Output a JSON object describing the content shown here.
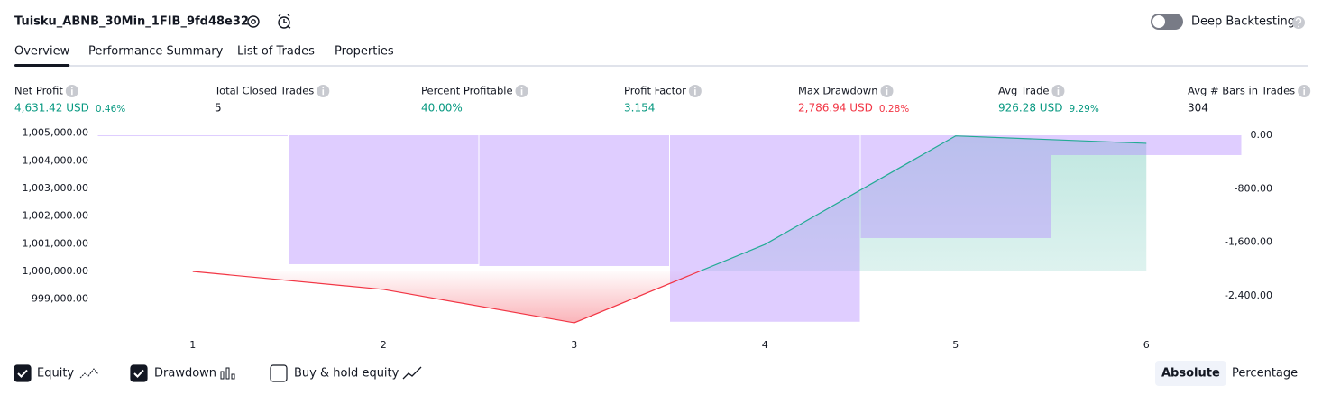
{
  "header": {
    "title": "Tuisku_ABNB_30Min_1FIB_9fd48e32",
    "toggle": "Deep Backtesting"
  },
  "tabs": [
    {
      "label": "Overview",
      "active": true
    },
    {
      "label": "Performance Summary",
      "active": false
    },
    {
      "label": "List of Trades",
      "active": false
    },
    {
      "label": "Properties",
      "active": false
    }
  ],
  "metrics": [
    {
      "label": "Net Profit",
      "value": "4,631.42 USD",
      "extra": "0.46%",
      "color": "#089981"
    },
    {
      "label": "Total Closed Trades",
      "value": 5,
      "color": "#131722"
    },
    {
      "label": "Percent Profitable",
      "value": "40.00%",
      "color": "#089981"
    },
    {
      "label": "Profit Factor",
      "value": 3.154,
      "color": "#089981"
    },
    {
      "label": "Max Drawdown",
      "value": "2,786.94 USD",
      "extra": "0.28%",
      "color": "#f23645"
    },
    {
      "label": "Avg Trade",
      "value": "926.28 USD",
      "extra": "9.29%",
      "color": "#089981"
    },
    {
      "label": "Avg # Bars in Trades",
      "value": 304,
      "color": "#131722"
    }
  ],
  "chart_data": {
    "type": "line",
    "categories": [
      "1",
      "2",
      "3",
      "4",
      "5",
      "6"
    ],
    "series": [
      {
        "name": "Equity",
        "type": "line",
        "color": "#22ab94",
        "negative_color": "#f23645",
        "values": [
          1000000,
          999350,
          998143,
          1000977,
          1004902,
          1004631.42
        ]
      },
      {
        "name": "Drawdown",
        "type": "bar",
        "axis": "y2",
        "color": "#b388ff",
        "values": [
          0,
          -1927,
          -1954,
          -2786.94,
          -1536,
          -296
        ]
      }
    ],
    "ylim": [
      997750,
      1005250
    ],
    "yticks": [
      {
        "value": 999000,
        "label": "999,000.00"
      },
      {
        "value": 1000000,
        "label": "1,000,000.00"
      },
      {
        "value": 1001000,
        "label": "1,001,000.00"
      },
      {
        "value": 1002000,
        "label": "1,002,000.00"
      },
      {
        "value": 1003000,
        "label": "1,003,000.00"
      },
      {
        "value": 1004000,
        "label": "1,004,000.00"
      },
      {
        "value": 1005000,
        "label": "1,005,000.00"
      }
    ],
    "y2lim": [
      -2965,
      135
    ],
    "y2ticks": [
      {
        "value": 0,
        "label": "0.00"
      },
      {
        "value": -800,
        "label": "-800.00"
      },
      {
        "value": -1600,
        "label": "-1,600.00"
      },
      {
        "value": -2400,
        "label": "-2,400.00"
      }
    ],
    "grid": false
  },
  "footer": {
    "buy_hold": "Buy & hold equity",
    "modes": [
      {
        "label": "Absolute",
        "active": true
      },
      {
        "label": "Percentage",
        "active": false
      }
    ]
  }
}
